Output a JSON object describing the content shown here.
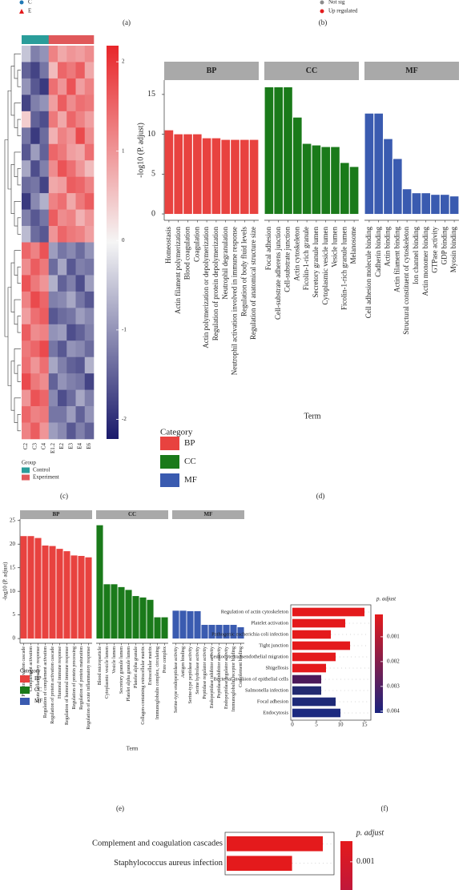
{
  "panel_a": {
    "label": "(a)",
    "legend": [
      {
        "name": "C",
        "color": "#1f78b4"
      },
      {
        "name": "E",
        "color": "#e31a1c"
      }
    ]
  },
  "panel_b": {
    "label": "(b)",
    "legend": [
      {
        "name": "Not sig",
        "color": "#8c8c8c"
      },
      {
        "name": "Up regulated",
        "color": "#e31a1c"
      }
    ]
  },
  "chart_data": [
    {
      "type": "heatmap",
      "label": "(c)",
      "columns": [
        "C2",
        "C3",
        "C4",
        "E1.2",
        "E2",
        "E3",
        "E4",
        "E6"
      ],
      "groups": {
        "title": "Group",
        "items": [
          {
            "name": "Control",
            "color": "#2a9d9a"
          },
          {
            "name": "Experiment",
            "color": "#e0585a"
          }
        ],
        "assign": [
          0,
          0,
          0,
          1,
          1,
          1,
          1,
          1
        ]
      },
      "colors": [
        "#1a1a6b",
        "#f5f5f5",
        "#e8262a"
      ],
      "zlim": [
        -2.22,
        2.18
      ],
      "zticks": [
        2,
        1,
        0,
        -1,
        -2
      ],
      "values": [
        [
          -0.5,
          -1.2,
          -1.0,
          1.2,
          0.8,
          1.0,
          0.9,
          1.1
        ],
        [
          -1.5,
          -1.8,
          -1.3,
          0.6,
          1.5,
          1.3,
          1.6,
          0.8
        ],
        [
          -1.0,
          -1.6,
          -1.9,
          1.4,
          1.0,
          1.7,
          0.9,
          1.2
        ],
        [
          -1.8,
          -1.2,
          -1.0,
          0.9,
          1.6,
          1.1,
          1.4,
          1.3
        ],
        [
          0.4,
          -1.5,
          -1.7,
          1.3,
          0.8,
          1.5,
          1.2,
          0.9
        ],
        [
          -1.3,
          -1.9,
          -1.4,
          0.7,
          1.2,
          1.0,
          1.8,
          1.1
        ],
        [
          -1.6,
          -0.9,
          -1.5,
          1.5,
          1.3,
          0.9,
          0.8,
          1.4
        ],
        [
          -0.8,
          -1.7,
          -1.2,
          1.1,
          1.7,
          1.4,
          1.0,
          0.6
        ],
        [
          -1.4,
          -1.3,
          -1.8,
          0.8,
          0.9,
          1.6,
          1.5,
          1.2
        ],
        [
          -1.9,
          -1.1,
          -0.7,
          1.2,
          1.4,
          0.8,
          1.3,
          1.6
        ],
        [
          -1.2,
          -1.6,
          -1.3,
          1.6,
          1.1,
          1.2,
          0.7,
          1.0
        ],
        [
          -0.6,
          -1.4,
          -1.6,
          1.0,
          1.5,
          1.3,
          1.2,
          0.9
        ],
        [
          1.5,
          1.2,
          1.7,
          -0.9,
          -1.3,
          -1.1,
          -1.4,
          -1.0
        ],
        [
          1.1,
          1.6,
          1.3,
          -1.4,
          -0.8,
          -1.6,
          -1.2,
          -1.3
        ],
        [
          1.7,
          1.3,
          1.0,
          -0.7,
          -1.5,
          -1.2,
          -1.7,
          -0.9
        ],
        [
          1.2,
          1.8,
          1.5,
          -1.2,
          -1.1,
          -0.8,
          -1.3,
          -1.6
        ],
        [
          0.9,
          1.4,
          1.6,
          -1.6,
          -1.4,
          -1.3,
          -0.9,
          -1.1
        ],
        [
          1.6,
          1.1,
          1.2,
          -1.0,
          -0.9,
          -1.7,
          -1.5,
          -1.2
        ],
        [
          1.3,
          1.5,
          1.8,
          -1.3,
          -1.6,
          -1.0,
          -1.1,
          -1.4
        ],
        [
          1.4,
          1.0,
          1.4,
          -0.8,
          -1.2,
          -1.5,
          -1.6,
          -0.7
        ],
        [
          1.8,
          1.3,
          1.1,
          -1.5,
          -1.0,
          -1.2,
          -1.3,
          -1.8
        ],
        [
          1.0,
          1.7,
          1.5,
          -1.1,
          -1.7,
          -1.4,
          -0.8,
          -1.2
        ],
        [
          1.5,
          1.2,
          1.3,
          -1.3,
          -1.3,
          -0.9,
          -1.5,
          -1.0
        ],
        [
          1.2,
          1.6,
          1.0,
          -0.9,
          -1.1,
          -1.6,
          -1.2,
          -1.5
        ]
      ]
    },
    {
      "type": "faceted-bar",
      "label": "(d)",
      "ylabel": "-log10 (P. adjust)",
      "xlabel": "Term",
      "legend_title": "Category",
      "ylim": [
        -0.8,
        16.8
      ],
      "yticks": [
        0,
        5,
        10,
        15
      ],
      "facets": [
        {
          "name": "BP",
          "color": "#e8423f",
          "categories": [
            "Homeostasis",
            "Actin filament polymerization",
            "Blood coagulation",
            "Coagulation",
            "Actin polymerization or depolymerization",
            "Regulation of protein depolymerization",
            "Neutrophil degranulation",
            "Neutrophil activation involved in immune response",
            "Regulation of body fluid levels",
            "Regulation of anatomical structure size"
          ],
          "values": [
            10.5,
            10,
            10,
            10,
            9.5,
            9.5,
            9.3,
            9.3,
            9.3,
            9.3
          ]
        },
        {
          "name": "CC",
          "color": "#1a7a1a",
          "categories": [
            "Focal adhesion",
            "Cell-substrate adherens junction",
            "Cell-substrate junction",
            "Actin cytoskeleton",
            "Ficolin-1-rich granule",
            "Secretory granule lumen",
            "Cytoplasmic vesicle lumen",
            "Vesicle lumen",
            "Ficolin-1-rich granule lumen",
            "Melanosome"
          ],
          "values": [
            15.9,
            15.9,
            15.9,
            12.1,
            8.8,
            8.6,
            8.4,
            8.4,
            6.4,
            5.9
          ]
        },
        {
          "name": "MF",
          "color": "#3a5bb0",
          "categories": [
            "Cell adhesion molecule binding",
            "Cadherin binding",
            "Actin binding",
            "Actin filament binding",
            "Structural constituent of cytoskeleton",
            "Ion channel binding",
            "Actin monomer binding",
            "GTPase activity",
            "GDP binding",
            "Myosin binding"
          ],
          "values": [
            12.6,
            12.6,
            9.4,
            6.9,
            3.1,
            2.6,
            2.6,
            2.4,
            2.4,
            2.2
          ]
        }
      ]
    },
    {
      "type": "faceted-bar",
      "label": "(e)",
      "ylabel": "-log10 (P. adjust)",
      "xlabel": "Term",
      "legend_title": "Category",
      "ylim": [
        -1,
        25.3
      ],
      "yticks": [
        0,
        5,
        10,
        15,
        20,
        25
      ],
      "facets": [
        {
          "name": "BP",
          "color": "#e8423f",
          "categories": [
            "Protein activation cascade",
            "Complement activation",
            "Acute inflammatory response",
            "Regulation of complement activation",
            "Regulation of protein activation cascade",
            "Humoral immune response",
            "Regulation of humoral immune response",
            "Regulation of protein processing",
            "Regulation of protein maturation",
            "Regulation of acute inflammatory response"
          ],
          "values": [
            21.7,
            21.7,
            21.3,
            19.7,
            19.6,
            19,
            18.5,
            17.6,
            17.5,
            17.2
          ]
        },
        {
          "name": "CC",
          "color": "#1a7a1a",
          "categories": [
            "Blood microparticle",
            "Cytoplasmic vesicle lumen",
            "Vesicle lumen",
            "Secretory granule lumen",
            "Platelet alpha granule lumen",
            "Platelet alpha granule",
            "Collagen-containing extracellular matrix",
            "Extracellular matrix",
            "Immunoglobulin complex, circulating",
            "Pore complex"
          ],
          "values": [
            24,
            11.5,
            11.5,
            10.9,
            10.3,
            9,
            8.7,
            8.2,
            4.5,
            4.5
          ]
        },
        {
          "name": "MF",
          "color": "#3a5bb0",
          "categories": [
            "Serine-type endopeptidase activity",
            "Antigen binding",
            "Serine-type peptidase activity",
            "Serine hydrolase activity",
            "Peptidase regulator activity",
            "Endopeptidase inhibitor activity",
            "Peptidase inhibitor activity",
            "Endopeptidase regulator activity",
            "Immunoglobulin receptor binding",
            "Complement binding"
          ],
          "values": [
            5.9,
            5.9,
            5.8,
            5.8,
            2.9,
            2.9,
            2.9,
            2.9,
            2.9,
            2.4
          ]
        }
      ]
    },
    {
      "type": "hbar",
      "label": "(f)",
      "categories": [
        "Regulation of actin cytoskeleton",
        "Platelet activation",
        "Pathogenic escherichia coli infection",
        "Tight junction",
        "Leukocyte transendothelial migration",
        "Shigellosis",
        "Bacterial invasion of epithelial cells",
        "Salmonella infection",
        "Focal adhesion",
        "Endocytosis"
      ],
      "values": [
        15,
        11,
        8,
        12,
        9,
        7,
        6,
        6,
        9,
        10
      ],
      "colors": [
        "#e41a1c",
        "#e41a1c",
        "#e41a1c",
        "#e41a1c",
        "#e41a1c",
        "#e41a1c",
        "#4b1a5a",
        "#222a70",
        "#1e2a78",
        "#1c2a80"
      ],
      "xlim": [
        0,
        16
      ],
      "xticks": [
        0,
        5,
        10,
        15
      ],
      "colorbar": {
        "title": "p. adjust",
        "lim": [
          0.0001,
          0.00407
        ],
        "ticks": [
          0.001,
          0.002,
          0.003,
          0.004
        ],
        "colors": [
          "#e41a1c",
          "#1a237e"
        ]
      }
    },
    {
      "type": "hbar",
      "categories": [
        "Complement and coagulation cascades",
        "Staphylococcus aureus infection"
      ],
      "values": [
        20,
        13.6
      ],
      "colors": [
        "#e41a1c",
        "#e41a1c"
      ],
      "xlim": [
        0,
        22
      ],
      "colorbar": {
        "title": "p. adjust",
        "lim": [
          0.00028,
          0.00198
        ],
        "ticks": [
          0.001
        ],
        "colors": [
          "#e41a1c",
          "#c0183a"
        ]
      }
    }
  ]
}
